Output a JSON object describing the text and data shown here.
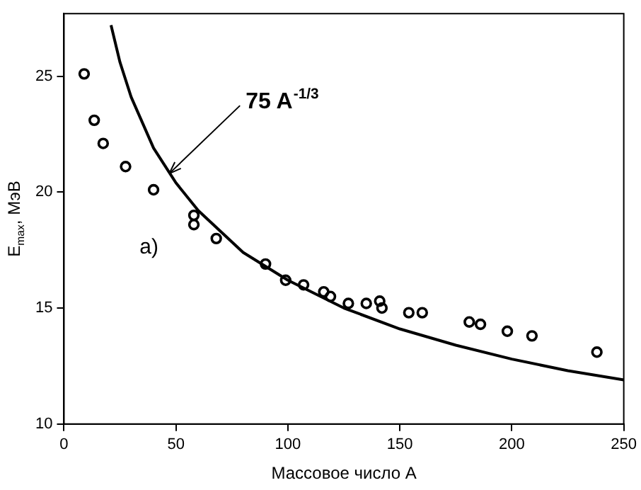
{
  "chart_data": {
    "type": "scatter",
    "xlabel": "Массовое число A",
    "ylabel": "E$_{max}$, МэВ",
    "xlim": [
      0,
      250
    ],
    "xticks": [
      0,
      50,
      100,
      150,
      200,
      250
    ],
    "ylim": [
      10,
      27.7
    ],
    "yticks": [
      10,
      15,
      20,
      25
    ],
    "marker": "circle",
    "grid": false,
    "legend": false,
    "series": [
      {
        "color": "#000000",
        "x": [
          9,
          13.5,
          17.5,
          27.5,
          40,
          58,
          58,
          68,
          90,
          99,
          107,
          116,
          119,
          127,
          135,
          141,
          142,
          154,
          160,
          181,
          186,
          198,
          209,
          238
        ],
        "values": [
          25.1,
          23.1,
          22.1,
          21.1,
          20.1,
          19.0,
          18.6,
          18.0,
          16.9,
          16.2,
          16.0,
          15.7,
          15.5,
          15.2,
          15.2,
          15.3,
          15.0,
          14.8,
          14.8,
          14.4,
          14.3,
          14.0,
          13.8,
          13.1
        ]
      },
      {
        "type": "line",
        "color": "#000000",
        "marker": "none",
        "x": [
          21,
          25,
          30,
          40,
          50,
          60,
          80,
          100,
          125,
          150,
          175,
          200,
          225,
          250
        ],
        "values": [
          27.2,
          25.6,
          24.1,
          21.9,
          20.4,
          19.2,
          17.4,
          16.2,
          15.0,
          14.1,
          13.4,
          12.8,
          12.3,
          11.9
        ]
      }
    ],
    "annotations": [
      {
        "text": "75 A$^{-1/3}$",
        "x": 47,
        "y": 20.8
      },
      "a)"
    ]
  }
}
